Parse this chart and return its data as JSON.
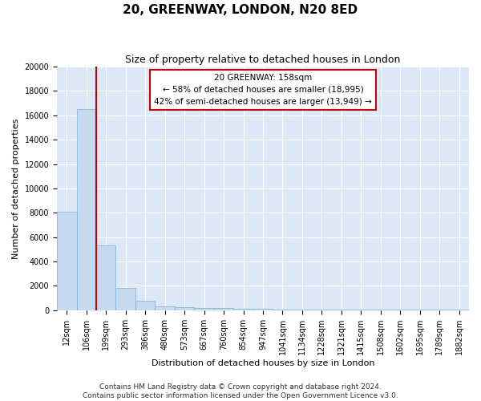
{
  "title": "20, GREENWAY, LONDON, N20 8ED",
  "subtitle": "Size of property relative to detached houses in London",
  "xlabel": "Distribution of detached houses by size in London",
  "ylabel": "Number of detached properties",
  "categories": [
    "12sqm",
    "106sqm",
    "199sqm",
    "293sqm",
    "386sqm",
    "480sqm",
    "573sqm",
    "667sqm",
    "760sqm",
    "854sqm",
    "947sqm",
    "1041sqm",
    "1134sqm",
    "1228sqm",
    "1321sqm",
    "1415sqm",
    "1508sqm",
    "1602sqm",
    "1695sqm",
    "1789sqm",
    "1882sqm"
  ],
  "values": [
    8100,
    16500,
    5300,
    1850,
    750,
    300,
    230,
    185,
    165,
    130,
    100,
    80,
    70,
    60,
    50,
    40,
    35,
    30,
    25,
    20,
    15
  ],
  "bar_color": "#c5d9ef",
  "bar_edge_color": "#7aadd4",
  "background_color": "#dce8f5",
  "grid_color": "#ffffff",
  "vline_color": "#cc0000",
  "annotation_line1": "20 GREENWAY: 158sqm",
  "annotation_line2": "← 58% of detached houses are smaller (18,995)",
  "annotation_line3": "42% of semi-detached houses are larger (13,949) →",
  "annotation_box_color": "#ffffff",
  "annotation_box_edge": "#cc0000",
  "ylim": [
    0,
    20000
  ],
  "yticks": [
    0,
    2000,
    4000,
    6000,
    8000,
    10000,
    12000,
    14000,
    16000,
    18000,
    20000
  ],
  "footer_line1": "Contains HM Land Registry data © Crown copyright and database right 2024.",
  "footer_line2": "Contains public sector information licensed under the Open Government Licence v3.0.",
  "title_fontsize": 11,
  "subtitle_fontsize": 9,
  "axis_label_fontsize": 8,
  "tick_fontsize": 7,
  "footer_fontsize": 6.5
}
